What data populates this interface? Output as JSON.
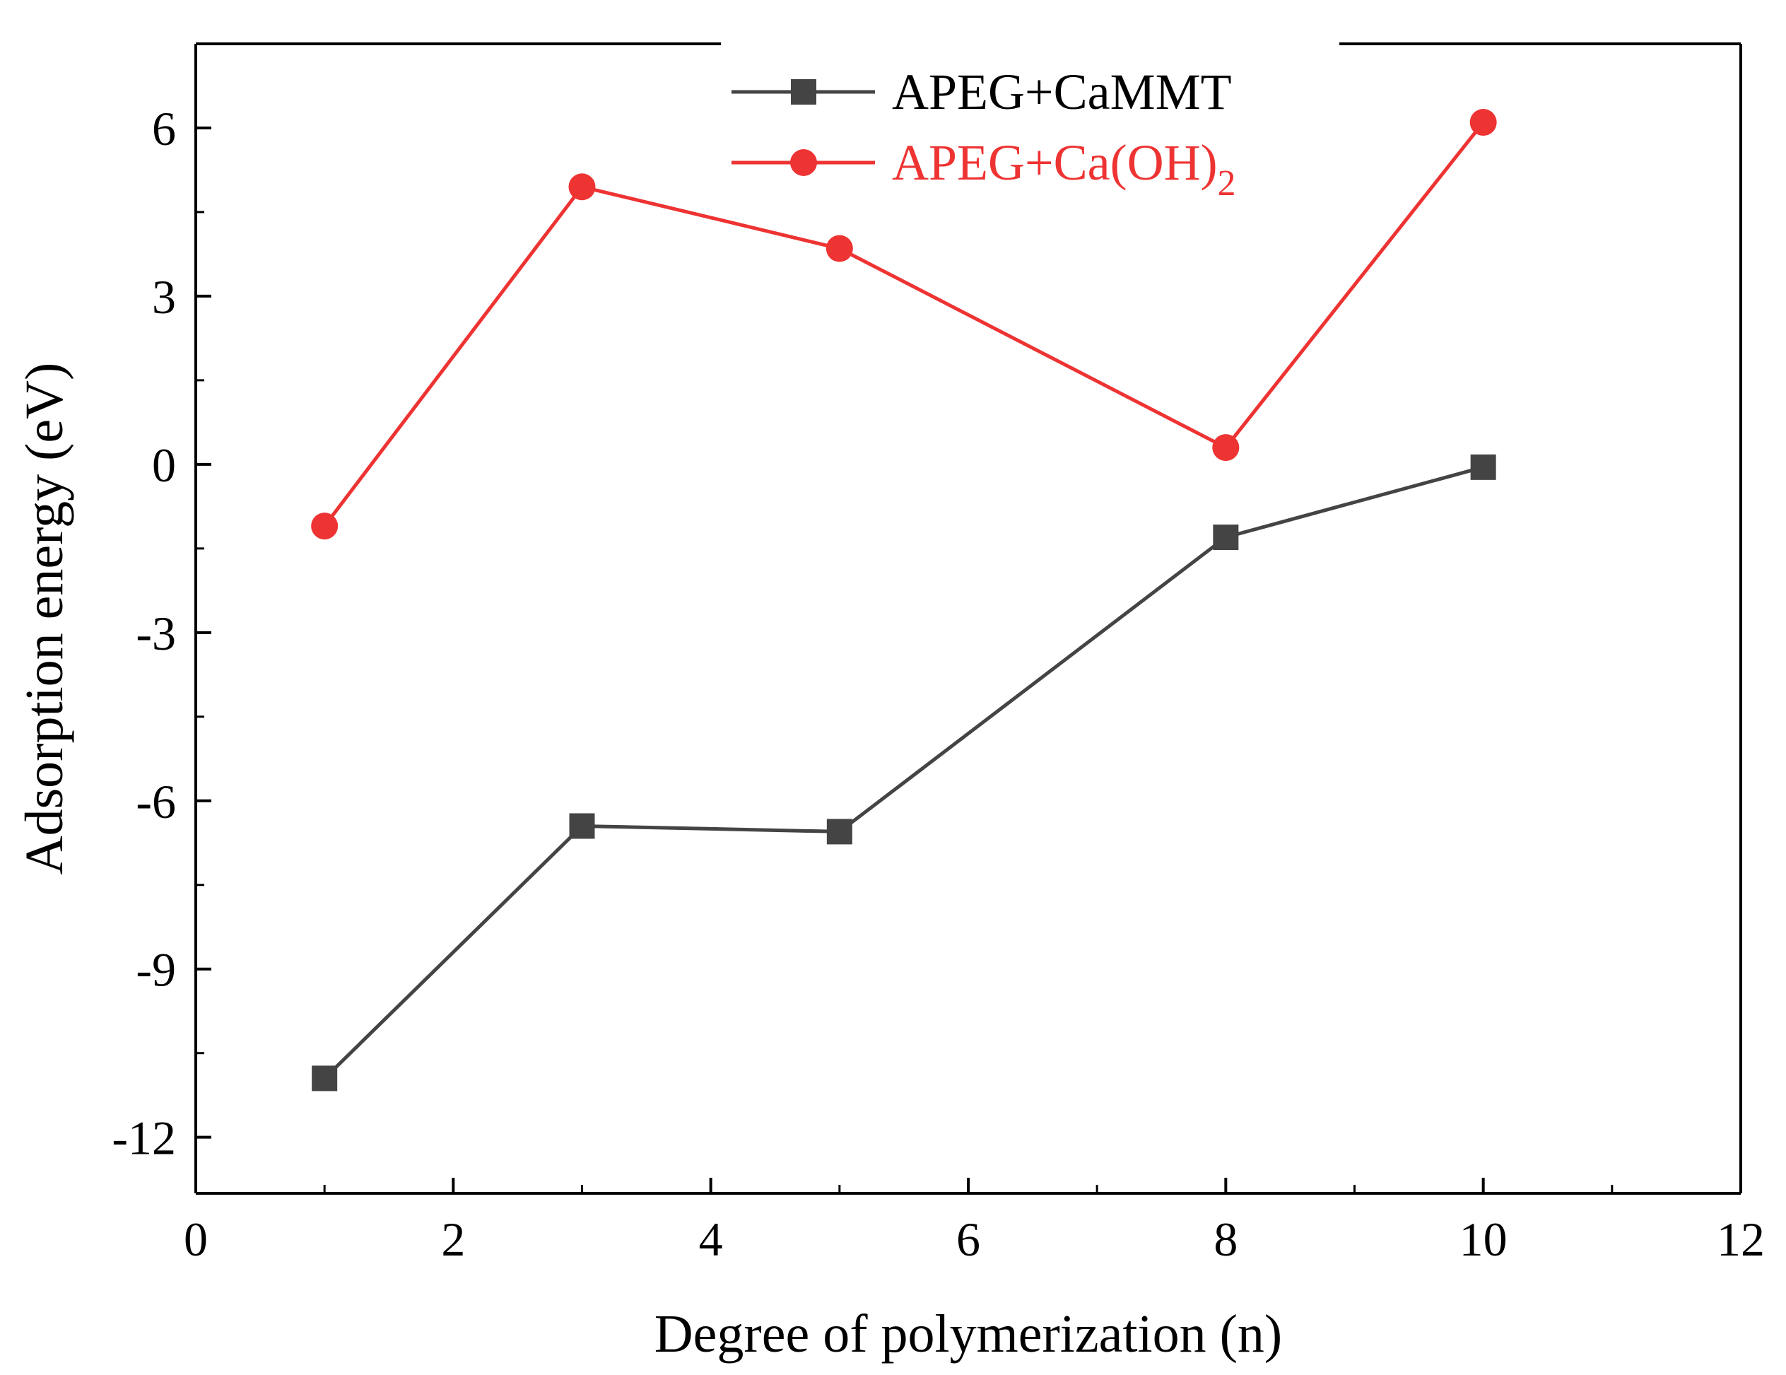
{
  "chart_data": {
    "type": "line",
    "title": "",
    "xlabel": "Degree of polymerization (n)",
    "ylabel": "Adsorption energy (eV)",
    "xlim": [
      0,
      12
    ],
    "ylim": [
      -13,
      7.5
    ],
    "xticks": [
      0,
      2,
      4,
      6,
      8,
      10,
      12
    ],
    "xtick_labels": [
      "0",
      "2",
      "4",
      "6",
      "8",
      "10",
      "12"
    ],
    "yticks": [
      -12,
      -9,
      -6,
      -3,
      0,
      3,
      6
    ],
    "ytick_labels": [
      "-12",
      "-9",
      "-6",
      "-3",
      "0",
      "3",
      "6"
    ],
    "grid": false,
    "legend_position": "top-center",
    "series": [
      {
        "name": "APEG+CaMMT",
        "label_main": "APEG+CaMMT",
        "label_sub": "",
        "color": "#444444",
        "marker": "square",
        "x": [
          1,
          3,
          5,
          8,
          10
        ],
        "y": [
          -10.95,
          -6.45,
          -6.55,
          -1.3,
          -0.05
        ]
      },
      {
        "name": "APEG+Ca(OH)2",
        "label_main": "APEG+Ca(OH)",
        "label_sub": "2",
        "color": "#ee3333",
        "marker": "circle",
        "x": [
          1,
          3,
          5,
          8,
          10
        ],
        "y": [
          -1.1,
          4.95,
          3.85,
          0.3,
          6.1
        ]
      }
    ]
  }
}
